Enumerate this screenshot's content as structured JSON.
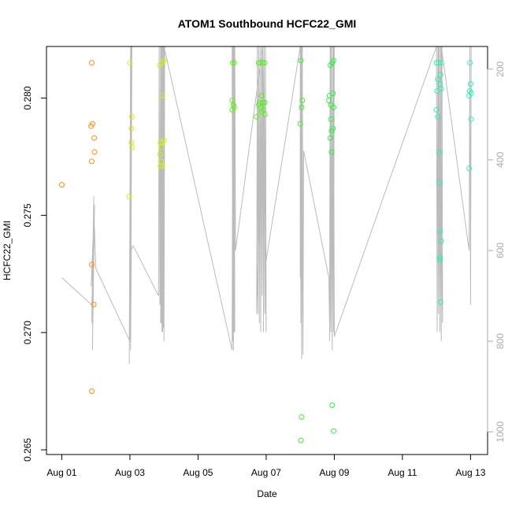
{
  "chart_data": {
    "type": "scatter",
    "title": "ATOM1 Southbound HCFC22_GMI",
    "xlabel": "Date",
    "ylabel": "HCFC22_GMI",
    "x_tick_labels": [
      "Aug 01",
      "Aug 03",
      "Aug 05",
      "Aug 07",
      "Aug 09",
      "Aug 11",
      "Aug 13"
    ],
    "x_tick_days": [
      1,
      3,
      5,
      7,
      9,
      11,
      13
    ],
    "xlim_days": [
      0.55,
      13.5
    ],
    "y_ticks": [
      0.265,
      0.27,
      0.275,
      0.28
    ],
    "y_tick_labels": [
      "0.265",
      "0.270",
      "0.275",
      "0.280"
    ],
    "ylim": [
      0.2648,
      0.2822
    ],
    "right_axis": {
      "ticks": [
        200,
        400,
        600,
        800,
        1000
      ],
      "tick_labels": [
        "200",
        "400",
        "600",
        "800",
        "1000"
      ],
      "lim": [
        1050,
        150
      ],
      "color": "#aaaaaa"
    },
    "grid": false,
    "points": [
      {
        "x": 1.0,
        "y": 0.2763,
        "color": "#ff8c1a"
      },
      {
        "x": 1.88,
        "y": 0.2815,
        "color": "#ff8c1a"
      },
      {
        "x": 1.86,
        "y": 0.2788,
        "color": "#ff8c1a"
      },
      {
        "x": 1.9,
        "y": 0.2789,
        "color": "#ff8c1a"
      },
      {
        "x": 1.95,
        "y": 0.2783,
        "color": "#ff8c1a"
      },
      {
        "x": 1.96,
        "y": 0.2777,
        "color": "#ff8c1a"
      },
      {
        "x": 1.88,
        "y": 0.2773,
        "color": "#ff8c1a"
      },
      {
        "x": 1.88,
        "y": 0.2729,
        "color": "#ff8c1a"
      },
      {
        "x": 1.94,
        "y": 0.2712,
        "color": "#ff8c1a"
      },
      {
        "x": 1.88,
        "y": 0.2675,
        "color": "#ff8c1a"
      },
      {
        "x": 3.0,
        "y": 0.2815,
        "color": "#d8e81a"
      },
      {
        "x": 3.06,
        "y": 0.2792,
        "color": "#d8e81a"
      },
      {
        "x": 3.04,
        "y": 0.2787,
        "color": "#d8e81a"
      },
      {
        "x": 3.04,
        "y": 0.2781,
        "color": "#d8e81a"
      },
      {
        "x": 3.06,
        "y": 0.2779,
        "color": "#d8e81a"
      },
      {
        "x": 2.98,
        "y": 0.2758,
        "color": "#d8e81a"
      },
      {
        "x": 3.88,
        "y": 0.2814,
        "color": "#c8f51a"
      },
      {
        "x": 3.95,
        "y": 0.2815,
        "color": "#c8f51a"
      },
      {
        "x": 4.0,
        "y": 0.2816,
        "color": "#c8f51a"
      },
      {
        "x": 3.95,
        "y": 0.2801,
        "color": "#c8f51a"
      },
      {
        "x": 3.9,
        "y": 0.2781,
        "color": "#c8f51a"
      },
      {
        "x": 3.95,
        "y": 0.2781,
        "color": "#c8f51a"
      },
      {
        "x": 4.0,
        "y": 0.2782,
        "color": "#c8f51a"
      },
      {
        "x": 3.92,
        "y": 0.2779,
        "color": "#c8f51a"
      },
      {
        "x": 3.88,
        "y": 0.2776,
        "color": "#c8f51a"
      },
      {
        "x": 3.92,
        "y": 0.2773,
        "color": "#c8f51a"
      },
      {
        "x": 3.9,
        "y": 0.2771,
        "color": "#c8f51a"
      },
      {
        "x": 3.95,
        "y": 0.2771,
        "color": "#c8f51a"
      },
      {
        "x": 6.02,
        "y": 0.2815,
        "color": "#66ee22"
      },
      {
        "x": 6.06,
        "y": 0.2815,
        "color": "#66ee22"
      },
      {
        "x": 6.0,
        "y": 0.2799,
        "color": "#66ee22"
      },
      {
        "x": 6.04,
        "y": 0.2797,
        "color": "#66ee22"
      },
      {
        "x": 6.0,
        "y": 0.2795,
        "color": "#66ee22"
      },
      {
        "x": 6.06,
        "y": 0.2796,
        "color": "#66ee22"
      },
      {
        "x": 6.78,
        "y": 0.2815,
        "color": "#5aee22"
      },
      {
        "x": 6.84,
        "y": 0.2815,
        "color": "#5aee22"
      },
      {
        "x": 6.9,
        "y": 0.2815,
        "color": "#5aee22"
      },
      {
        "x": 6.96,
        "y": 0.2815,
        "color": "#5aee22"
      },
      {
        "x": 6.86,
        "y": 0.2801,
        "color": "#5aee22"
      },
      {
        "x": 6.82,
        "y": 0.2798,
        "color": "#5aee22"
      },
      {
        "x": 6.9,
        "y": 0.2798,
        "color": "#5aee22"
      },
      {
        "x": 6.96,
        "y": 0.2798,
        "color": "#5aee22"
      },
      {
        "x": 6.78,
        "y": 0.2797,
        "color": "#5aee22"
      },
      {
        "x": 6.84,
        "y": 0.2796,
        "color": "#5aee22"
      },
      {
        "x": 6.92,
        "y": 0.2795,
        "color": "#5aee22"
      },
      {
        "x": 6.86,
        "y": 0.2794,
        "color": "#5aee22"
      },
      {
        "x": 6.96,
        "y": 0.2793,
        "color": "#5aee22"
      },
      {
        "x": 6.72,
        "y": 0.2792,
        "color": "#5aee22"
      },
      {
        "x": 8.02,
        "y": 0.2816,
        "color": "#44ee33"
      },
      {
        "x": 8.06,
        "y": 0.2799,
        "color": "#44ee33"
      },
      {
        "x": 8.04,
        "y": 0.2796,
        "color": "#44ee33"
      },
      {
        "x": 8.0,
        "y": 0.2789,
        "color": "#44ee33"
      },
      {
        "x": 8.04,
        "y": 0.2664,
        "color": "#44ee33"
      },
      {
        "x": 8.02,
        "y": 0.2654,
        "color": "#44ee33"
      },
      {
        "x": 8.88,
        "y": 0.2814,
        "color": "#33ee44"
      },
      {
        "x": 8.94,
        "y": 0.2815,
        "color": "#33ee44"
      },
      {
        "x": 8.98,
        "y": 0.2816,
        "color": "#33ee44"
      },
      {
        "x": 8.86,
        "y": 0.2801,
        "color": "#33ee44"
      },
      {
        "x": 8.96,
        "y": 0.2802,
        "color": "#33ee44"
      },
      {
        "x": 8.84,
        "y": 0.2799,
        "color": "#33ee44"
      },
      {
        "x": 8.9,
        "y": 0.2797,
        "color": "#33ee44"
      },
      {
        "x": 8.98,
        "y": 0.2796,
        "color": "#33ee44"
      },
      {
        "x": 8.9,
        "y": 0.2791,
        "color": "#33ee44"
      },
      {
        "x": 8.96,
        "y": 0.2787,
        "color": "#33ee44"
      },
      {
        "x": 8.92,
        "y": 0.2786,
        "color": "#33ee44"
      },
      {
        "x": 8.88,
        "y": 0.2783,
        "color": "#33ee44"
      },
      {
        "x": 8.92,
        "y": 0.2777,
        "color": "#33ee44"
      },
      {
        "x": 8.94,
        "y": 0.2669,
        "color": "#33ee44"
      },
      {
        "x": 8.98,
        "y": 0.2658,
        "color": "#33ee44"
      },
      {
        "x": 12.0,
        "y": 0.2815,
        "color": "#33eeaa"
      },
      {
        "x": 12.06,
        "y": 0.2815,
        "color": "#33eeaa"
      },
      {
        "x": 12.14,
        "y": 0.2815,
        "color": "#33eeaa"
      },
      {
        "x": 12.12,
        "y": 0.281,
        "color": "#33eeaa"
      },
      {
        "x": 12.04,
        "y": 0.2808,
        "color": "#33eeaa"
      },
      {
        "x": 12.1,
        "y": 0.2806,
        "color": "#33eeaa"
      },
      {
        "x": 12.14,
        "y": 0.2804,
        "color": "#33eeaa"
      },
      {
        "x": 12.02,
        "y": 0.2803,
        "color": "#33eeaa"
      },
      {
        "x": 12.0,
        "y": 0.2795,
        "color": "#33eeaa"
      },
      {
        "x": 12.04,
        "y": 0.2792,
        "color": "#33eeaa"
      },
      {
        "x": 12.08,
        "y": 0.2777,
        "color": "#33eeaa"
      },
      {
        "x": 12.08,
        "y": 0.2764,
        "color": "#33eeaa"
      },
      {
        "x": 12.1,
        "y": 0.2743,
        "color": "#33eeaa"
      },
      {
        "x": 12.14,
        "y": 0.2739,
        "color": "#33eeaa"
      },
      {
        "x": 12.1,
        "y": 0.2732,
        "color": "#33eeaa"
      },
      {
        "x": 12.1,
        "y": 0.2731,
        "color": "#33eeaa"
      },
      {
        "x": 12.12,
        "y": 0.2713,
        "color": "#33eeaa"
      },
      {
        "x": 12.98,
        "y": 0.2815,
        "color": "#33eebb"
      },
      {
        "x": 13.0,
        "y": 0.2806,
        "color": "#33eebb"
      },
      {
        "x": 12.98,
        "y": 0.2803,
        "color": "#33eebb"
      },
      {
        "x": 12.96,
        "y": 0.2801,
        "color": "#33eebb"
      },
      {
        "x": 13.02,
        "y": 0.2802,
        "color": "#33eebb"
      },
      {
        "x": 13.02,
        "y": 0.2791,
        "color": "#33eebb"
      },
      {
        "x": 12.96,
        "y": 0.277,
        "color": "#33eebb"
      }
    ],
    "pressure_trace": {
      "color": "#bbbbbb",
      "x": [
        1.0,
        1.88,
        1.96,
        1.86,
        1.95,
        1.88,
        1.94,
        1.9,
        1.96,
        1.88,
        1.92,
        1.9,
        1.96,
        1.98,
        2.0,
        3.0,
        3.02,
        2.98,
        3.04,
        3.0,
        3.06,
        3.02,
        3.04,
        3.08,
        3.1,
        3.84,
        3.86,
        3.88,
        3.9,
        3.92,
        3.94,
        3.96,
        3.98,
        4.0,
        4.02,
        3.9,
        3.92,
        3.94,
        3.96,
        3.98,
        4.0,
        6.0,
        6.02,
        6.04,
        6.06,
        6.08,
        6.0,
        6.02,
        6.04,
        6.06,
        6.08,
        6.1,
        6.9,
        6.72,
        6.74,
        6.76,
        6.78,
        6.8,
        6.82,
        6.84,
        6.86,
        6.88,
        6.9,
        6.92,
        6.94,
        6.96,
        6.98,
        7.0,
        6.9,
        6.92,
        6.94,
        6.96,
        8.0,
        8.0,
        8.02,
        8.04,
        8.06,
        8.08,
        8.0,
        8.02,
        8.04,
        8.08,
        8.1,
        8.84,
        8.86,
        8.88,
        8.9,
        8.92,
        8.94,
        8.96,
        8.98,
        9.0,
        8.86,
        8.9,
        8.94,
        8.98,
        9.0,
        12.0,
        12.02,
        12.04,
        12.06,
        12.08,
        12.1,
        12.12,
        12.14,
        12.16,
        12.18,
        12.06,
        12.1,
        12.14,
        12.96,
        12.98,
        13.0,
        13.02
      ],
      "y": [
        660,
        720,
        560,
        680,
        520,
        760,
        480,
        820,
        500,
        760,
        600,
        700,
        550,
        600,
        640,
        800,
        150,
        850,
        150,
        760,
        150,
        820,
        600,
        590,
        590,
        700,
        150,
        720,
        150,
        760,
        150,
        780,
        150,
        800,
        150,
        760,
        150,
        780,
        150,
        770,
        150,
        820,
        150,
        820,
        150,
        780,
        150,
        800,
        150,
        780,
        150,
        600,
        150,
        740,
        150,
        740,
        150,
        760,
        150,
        780,
        150,
        700,
        150,
        780,
        150,
        740,
        150,
        780,
        150,
        720,
        150,
        640,
        150,
        660,
        150,
        840,
        150,
        720,
        150,
        760,
        150,
        830,
        380,
        660,
        760,
        150,
        780,
        150,
        800,
        150,
        780,
        150,
        800,
        150,
        820,
        150,
        790,
        150,
        780,
        150,
        740,
        150,
        780,
        150,
        800,
        150,
        760,
        150,
        780,
        150,
        600,
        150,
        720,
        150
      ]
    }
  }
}
